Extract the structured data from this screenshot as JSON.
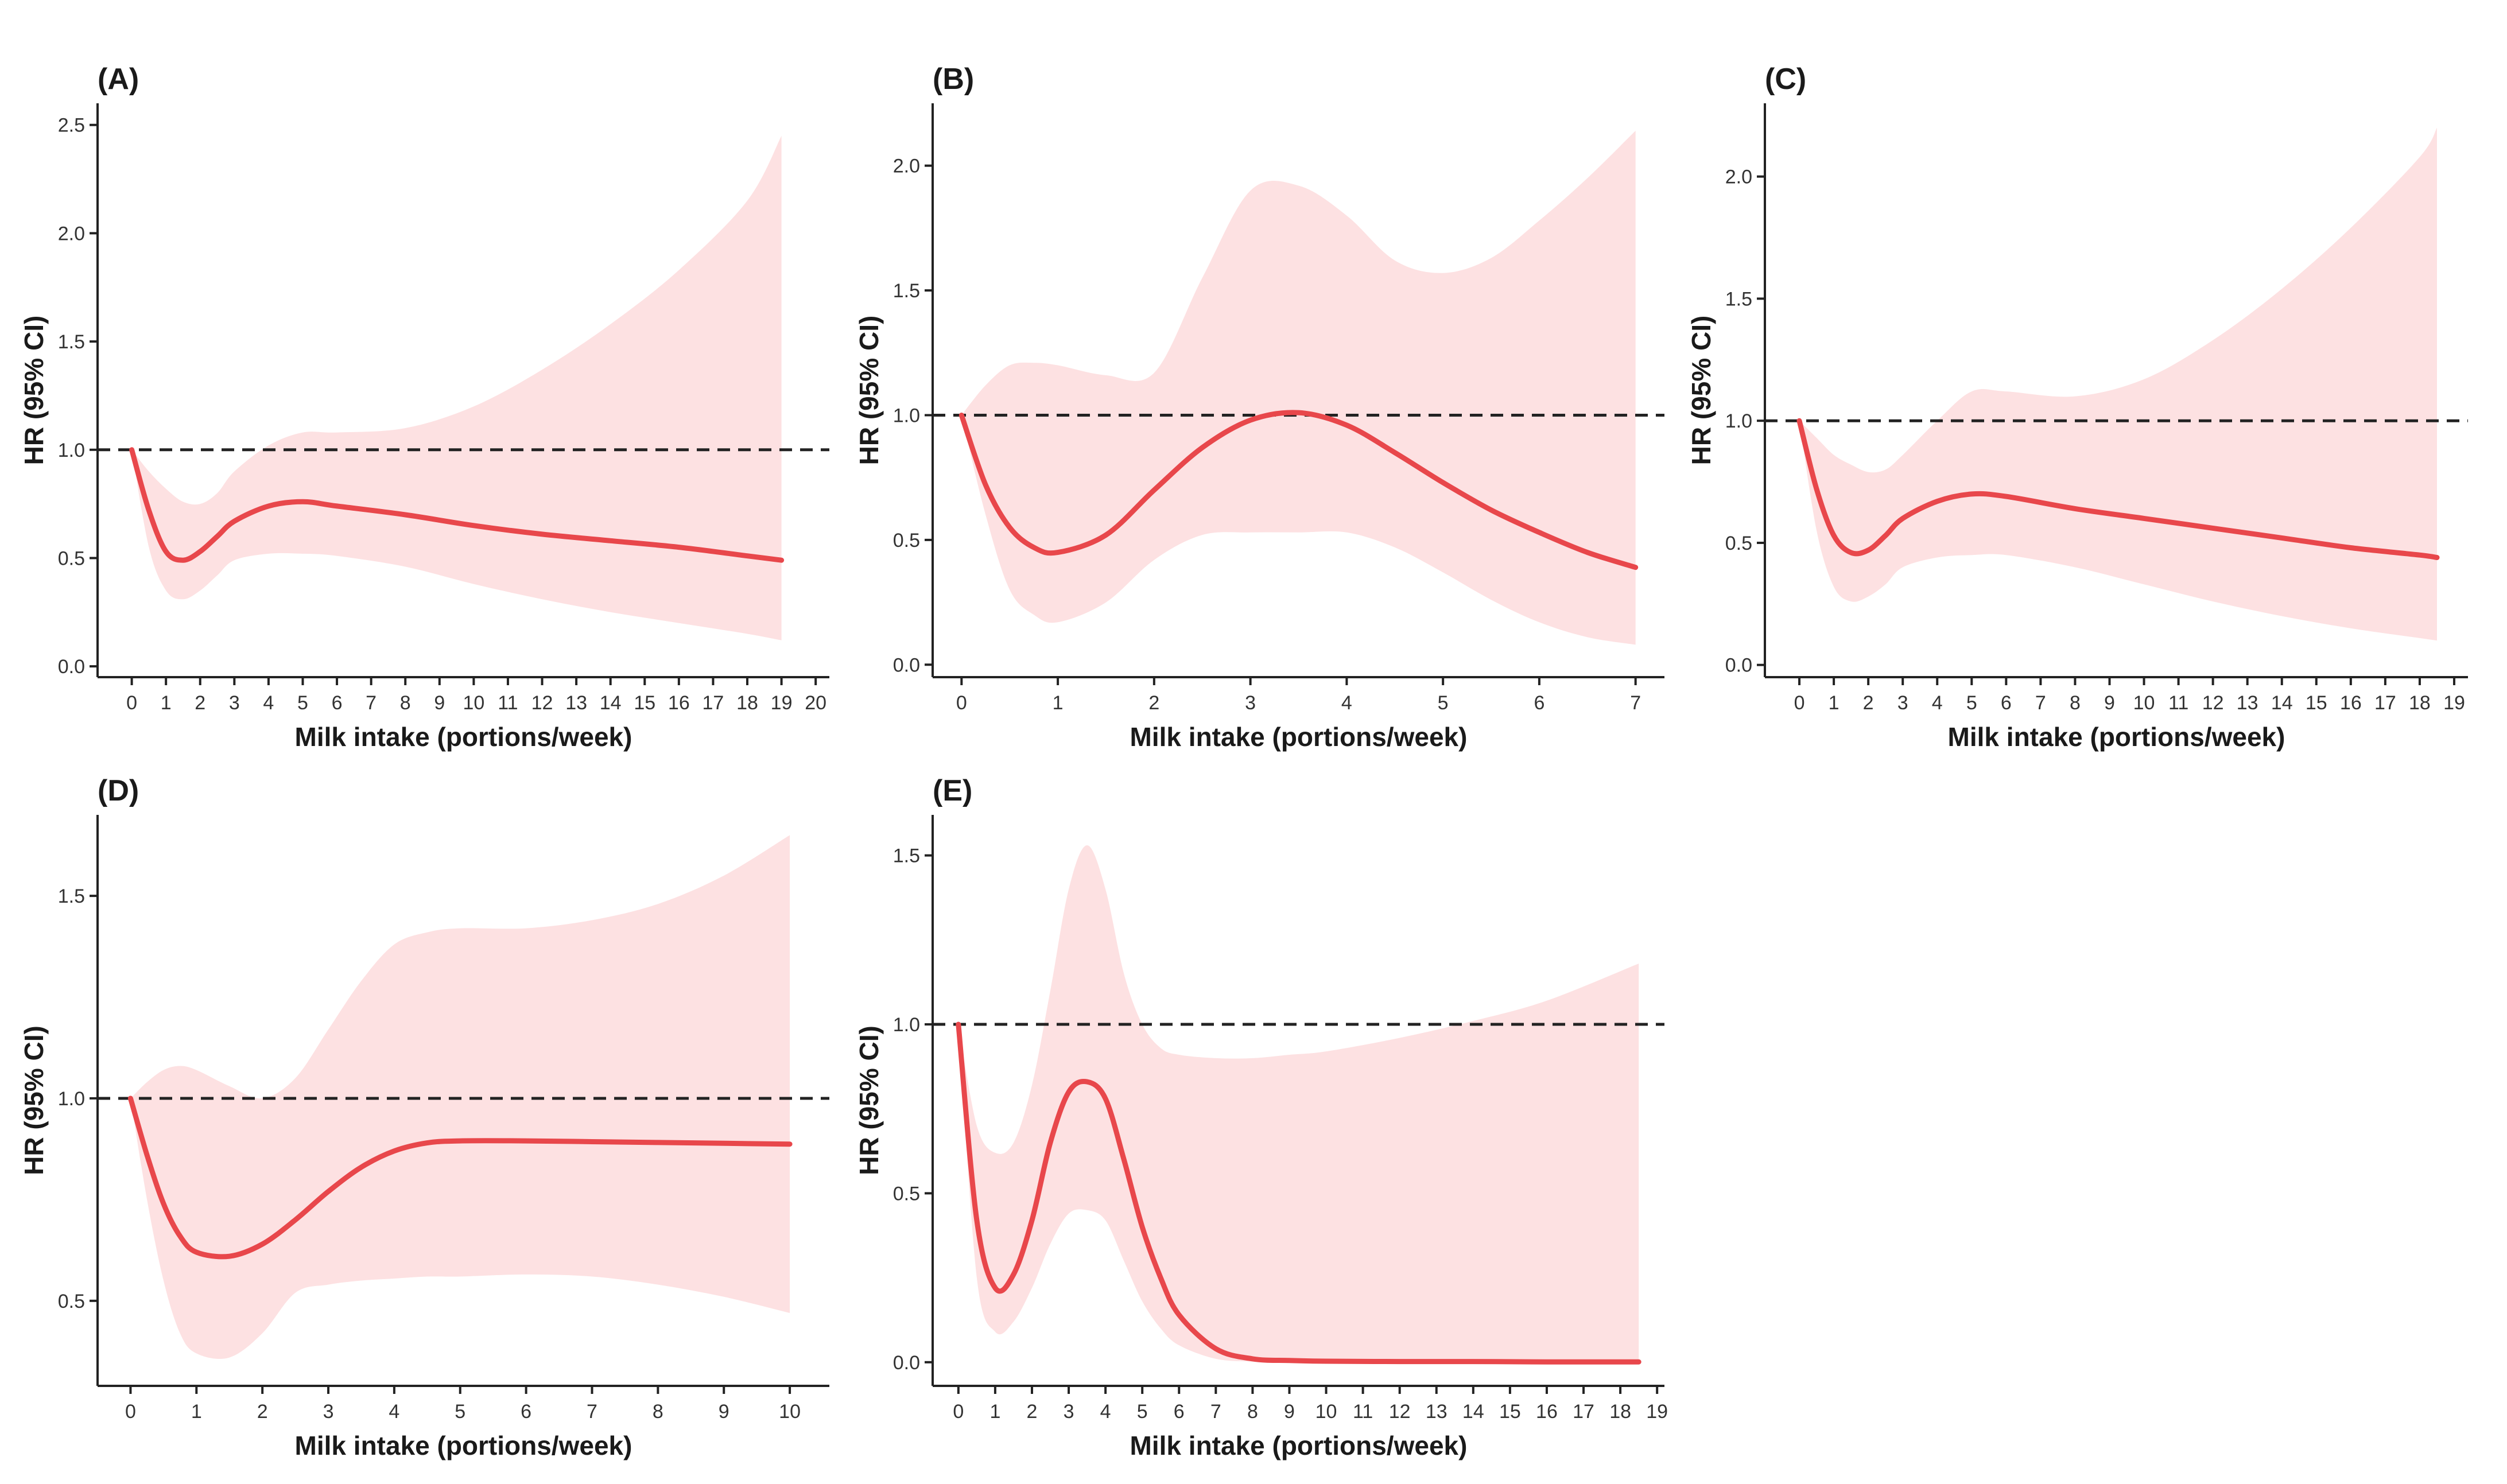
{
  "colors": {
    "line": "#e8474b",
    "ribbon": "#fde1e2",
    "reference": "#222222",
    "axis": "#222222"
  },
  "chart_data": [
    {
      "panel": "(A)",
      "type": "line",
      "xlabel": "Milk intake (portions/week)",
      "ylabel": "HR (95% CI)",
      "xlim": [
        -1,
        20.4
      ],
      "ylim": [
        -0.05,
        2.6
      ],
      "x_ticks": [
        0,
        1,
        2,
        3,
        4,
        5,
        6,
        7,
        8,
        9,
        10,
        11,
        12,
        13,
        14,
        15,
        16,
        17,
        18,
        19,
        20
      ],
      "x_tick_labels": [
        "0",
        "1",
        "2",
        "3",
        "4",
        "5",
        "6",
        "7",
        "8",
        "9",
        "10",
        "11",
        "12",
        "13",
        "14",
        "15",
        "16",
        "17",
        "18",
        "19",
        "20"
      ],
      "y_ticks": [
        0,
        0.5,
        1,
        1.5,
        2,
        2.5
      ],
      "y_tick_labels": [
        "0.0",
        "0.5",
        "1.0",
        "1.5",
        "2.0",
        "2.5"
      ],
      "reference_line": 1.0,
      "x": [
        0,
        0.5,
        1,
        1.5,
        2,
        2.5,
        3,
        4,
        5,
        6,
        8,
        10,
        12,
        14,
        16,
        18,
        19
      ],
      "hr": [
        1.0,
        0.72,
        0.53,
        0.49,
        0.53,
        0.6,
        0.67,
        0.74,
        0.76,
        0.74,
        0.7,
        0.65,
        0.61,
        0.58,
        0.55,
        0.51,
        0.49
      ],
      "lower": [
        1.0,
        0.55,
        0.35,
        0.31,
        0.35,
        0.42,
        0.49,
        0.52,
        0.52,
        0.51,
        0.46,
        0.38,
        0.31,
        0.25,
        0.2,
        0.15,
        0.12
      ],
      "upper": [
        1.0,
        0.9,
        0.82,
        0.76,
        0.75,
        0.8,
        0.9,
        1.02,
        1.08,
        1.08,
        1.1,
        1.2,
        1.37,
        1.58,
        1.83,
        2.15,
        2.45
      ]
    },
    {
      "panel": "(B)",
      "type": "line",
      "xlabel": "Milk intake (portions/week)",
      "ylabel": "HR (95% CI)",
      "xlim": [
        -0.3,
        7.3
      ],
      "ylim": [
        -0.05,
        2.25
      ],
      "x_ticks": [
        0,
        1,
        2,
        3,
        4,
        5,
        6,
        7
      ],
      "x_tick_labels": [
        "0",
        "1",
        "2",
        "3",
        "4",
        "5",
        "6",
        "7"
      ],
      "y_ticks": [
        0,
        0.5,
        1,
        1.5,
        2
      ],
      "y_tick_labels": [
        "0.0",
        "0.5",
        "1.0",
        "1.5",
        "2.0"
      ],
      "reference_line": 1.0,
      "x": [
        0,
        0.25,
        0.5,
        0.75,
        1,
        1.5,
        2,
        2.5,
        3,
        3.5,
        4,
        4.5,
        5,
        5.5,
        6,
        6.5,
        7
      ],
      "hr": [
        1.0,
        0.72,
        0.55,
        0.47,
        0.45,
        0.52,
        0.7,
        0.87,
        0.98,
        1.01,
        0.96,
        0.85,
        0.73,
        0.62,
        0.53,
        0.45,
        0.39
      ],
      "lower": [
        1.0,
        0.6,
        0.3,
        0.2,
        0.17,
        0.25,
        0.42,
        0.52,
        0.53,
        0.53,
        0.53,
        0.47,
        0.37,
        0.26,
        0.17,
        0.11,
        0.08
      ],
      "upper": [
        1.0,
        1.12,
        1.2,
        1.21,
        1.2,
        1.16,
        1.17,
        1.55,
        1.9,
        1.92,
        1.8,
        1.62,
        1.57,
        1.63,
        1.78,
        1.95,
        2.14
      ]
    },
    {
      "panel": "(C)",
      "type": "line",
      "xlabel": "Milk intake (portions/week)",
      "ylabel": "HR (95% CI)",
      "xlim": [
        -1,
        19.4
      ],
      "ylim": [
        -0.05,
        2.3
      ],
      "x_ticks": [
        0,
        1,
        2,
        3,
        4,
        5,
        6,
        7,
        8,
        9,
        10,
        11,
        12,
        13,
        14,
        15,
        16,
        17,
        18,
        19
      ],
      "x_tick_labels": [
        "0",
        "1",
        "2",
        "3",
        "4",
        "5",
        "6",
        "7",
        "8",
        "9",
        "10",
        "11",
        "12",
        "13",
        "14",
        "15",
        "16",
        "17",
        "18",
        "19"
      ],
      "y_ticks": [
        0,
        0.5,
        1,
        1.5,
        2
      ],
      "y_tick_labels": [
        "0.0",
        "0.5",
        "1.0",
        "1.5",
        "2.0"
      ],
      "reference_line": 1.0,
      "x": [
        0,
        0.5,
        1,
        1.5,
        2,
        2.5,
        3,
        4,
        5,
        6,
        8,
        10,
        12,
        14,
        16,
        18,
        18.5
      ],
      "hr": [
        1.0,
        0.72,
        0.53,
        0.46,
        0.47,
        0.53,
        0.6,
        0.67,
        0.7,
        0.69,
        0.64,
        0.6,
        0.56,
        0.52,
        0.48,
        0.45,
        0.44
      ],
      "lower": [
        1.0,
        0.55,
        0.32,
        0.26,
        0.28,
        0.33,
        0.4,
        0.44,
        0.45,
        0.45,
        0.4,
        0.33,
        0.26,
        0.2,
        0.15,
        0.11,
        0.1
      ],
      "upper": [
        1.0,
        0.93,
        0.86,
        0.82,
        0.79,
        0.8,
        0.86,
        1.0,
        1.12,
        1.12,
        1.1,
        1.17,
        1.33,
        1.54,
        1.79,
        2.08,
        2.2
      ]
    },
    {
      "panel": "(D)",
      "type": "line",
      "xlabel": "Milk intake (portions/week)",
      "ylabel": "HR (95% CI)",
      "xlim": [
        -0.5,
        10.6
      ],
      "ylim": [
        0.29,
        1.7
      ],
      "x_ticks": [
        0,
        1,
        2,
        3,
        4,
        5,
        6,
        7,
        8,
        9,
        10
      ],
      "x_tick_labels": [
        "0",
        "1",
        "2",
        "3",
        "4",
        "5",
        "6",
        "7",
        "8",
        "9",
        "10"
      ],
      "y_ticks": [
        0.5,
        1,
        1.5
      ],
      "y_tick_labels": [
        "0.5",
        "1.0",
        "1.5"
      ],
      "reference_line": 1.0,
      "x": [
        0,
        0.25,
        0.5,
        0.75,
        1,
        1.5,
        2,
        2.5,
        3,
        3.5,
        4,
        4.5,
        5,
        6,
        7,
        8,
        9,
        10
      ],
      "hr": [
        1.0,
        0.86,
        0.74,
        0.66,
        0.62,
        0.61,
        0.64,
        0.7,
        0.77,
        0.83,
        0.87,
        0.89,
        0.895,
        0.895,
        0.893,
        0.891,
        0.889,
        0.887
      ],
      "lower": [
        1.0,
        0.75,
        0.55,
        0.42,
        0.37,
        0.36,
        0.42,
        0.52,
        0.54,
        0.55,
        0.555,
        0.56,
        0.56,
        0.565,
        0.56,
        0.54,
        0.51,
        0.47
      ],
      "upper": [
        1.0,
        1.04,
        1.07,
        1.08,
        1.07,
        1.03,
        1.0,
        1.05,
        1.17,
        1.29,
        1.38,
        1.41,
        1.42,
        1.42,
        1.44,
        1.48,
        1.55,
        1.65
      ]
    },
    {
      "panel": "(E)",
      "type": "line",
      "xlabel": "Milk intake (portions/week)",
      "ylabel": "HR (95% CI)",
      "xlim": [
        -0.7,
        19.2
      ],
      "ylim": [
        -0.07,
        1.62
      ],
      "x_ticks": [
        0,
        1,
        2,
        3,
        4,
        5,
        6,
        7,
        8,
        9,
        10,
        11,
        12,
        13,
        14,
        15,
        16,
        17,
        18,
        19
      ],
      "x_tick_labels": [
        "0",
        "1",
        "2",
        "3",
        "4",
        "5",
        "6",
        "7",
        "8",
        "9",
        "10",
        "11",
        "12",
        "13",
        "14",
        "15",
        "16",
        "17",
        "18",
        "19"
      ],
      "y_ticks": [
        0,
        0.5,
        1,
        1.5
      ],
      "y_tick_labels": [
        "0.0",
        "0.5",
        "1.0",
        "1.5"
      ],
      "reference_line": 1.0,
      "x": [
        0,
        0.5,
        1,
        1.5,
        2,
        2.5,
        3,
        3.5,
        4,
        4.5,
        5,
        5.5,
        6,
        7,
        8,
        9,
        10,
        12,
        14,
        16,
        18.5
      ],
      "hr": [
        1.0,
        0.42,
        0.22,
        0.26,
        0.42,
        0.65,
        0.8,
        0.83,
        0.78,
        0.6,
        0.4,
        0.25,
        0.14,
        0.04,
        0.01,
        0.005,
        0.003,
        0.002,
        0.002,
        0.001,
        0.001
      ],
      "lower": [
        1.0,
        0.25,
        0.09,
        0.12,
        0.22,
        0.35,
        0.44,
        0.45,
        0.42,
        0.3,
        0.18,
        0.1,
        0.05,
        0.01,
        0.002,
        0.001,
        0.001,
        0.0,
        0.0,
        0.0,
        0.0
      ],
      "upper": [
        1.0,
        0.7,
        0.62,
        0.65,
        0.82,
        1.1,
        1.4,
        1.53,
        1.4,
        1.15,
        1.0,
        0.93,
        0.91,
        0.9,
        0.9,
        0.91,
        0.92,
        0.96,
        1.01,
        1.07,
        1.18
      ]
    }
  ]
}
